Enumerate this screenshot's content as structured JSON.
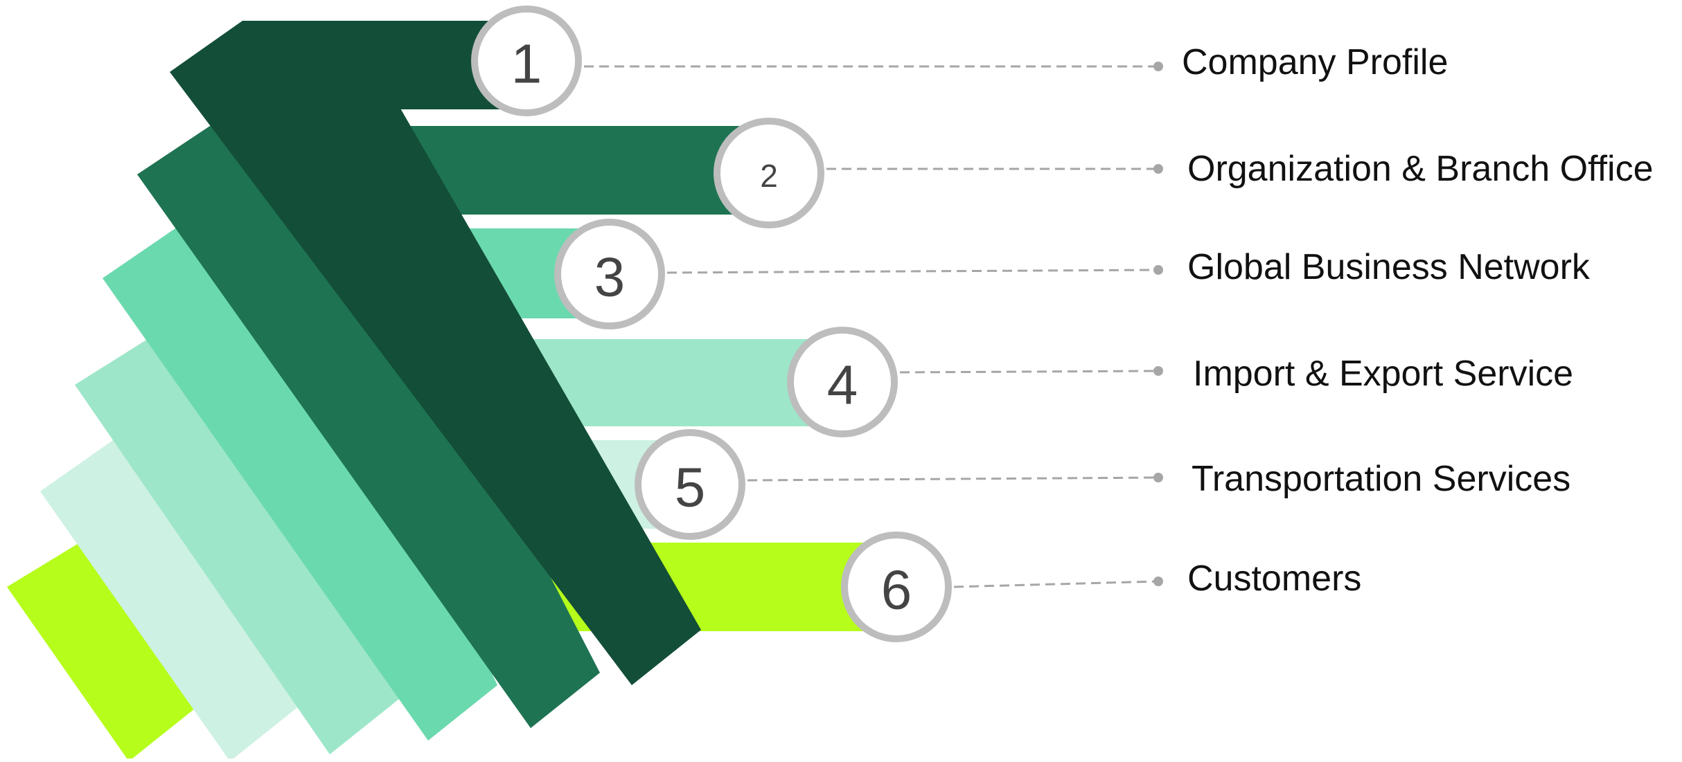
{
  "items": [
    {
      "number": "1",
      "label": "Company Profile",
      "color": "#134e38"
    },
    {
      "number": "2",
      "label": "Organization & Branch Office",
      "color": "#1e7352"
    },
    {
      "number": "3",
      "label": "Global Business Network",
      "color": "#6bd9ae"
    },
    {
      "number": "4",
      "label": "Import & Export Service",
      "color": "#9de6c9"
    },
    {
      "number": "5",
      "label": "Transportation Services",
      "color": "#cdf1e3"
    },
    {
      "number": "6",
      "label": "Customers",
      "color": "#b6fd1c"
    }
  ],
  "colors": {
    "circle_stroke": "#bdbdbd",
    "connector": "#a6a6a6",
    "number_text": "#444444"
  }
}
